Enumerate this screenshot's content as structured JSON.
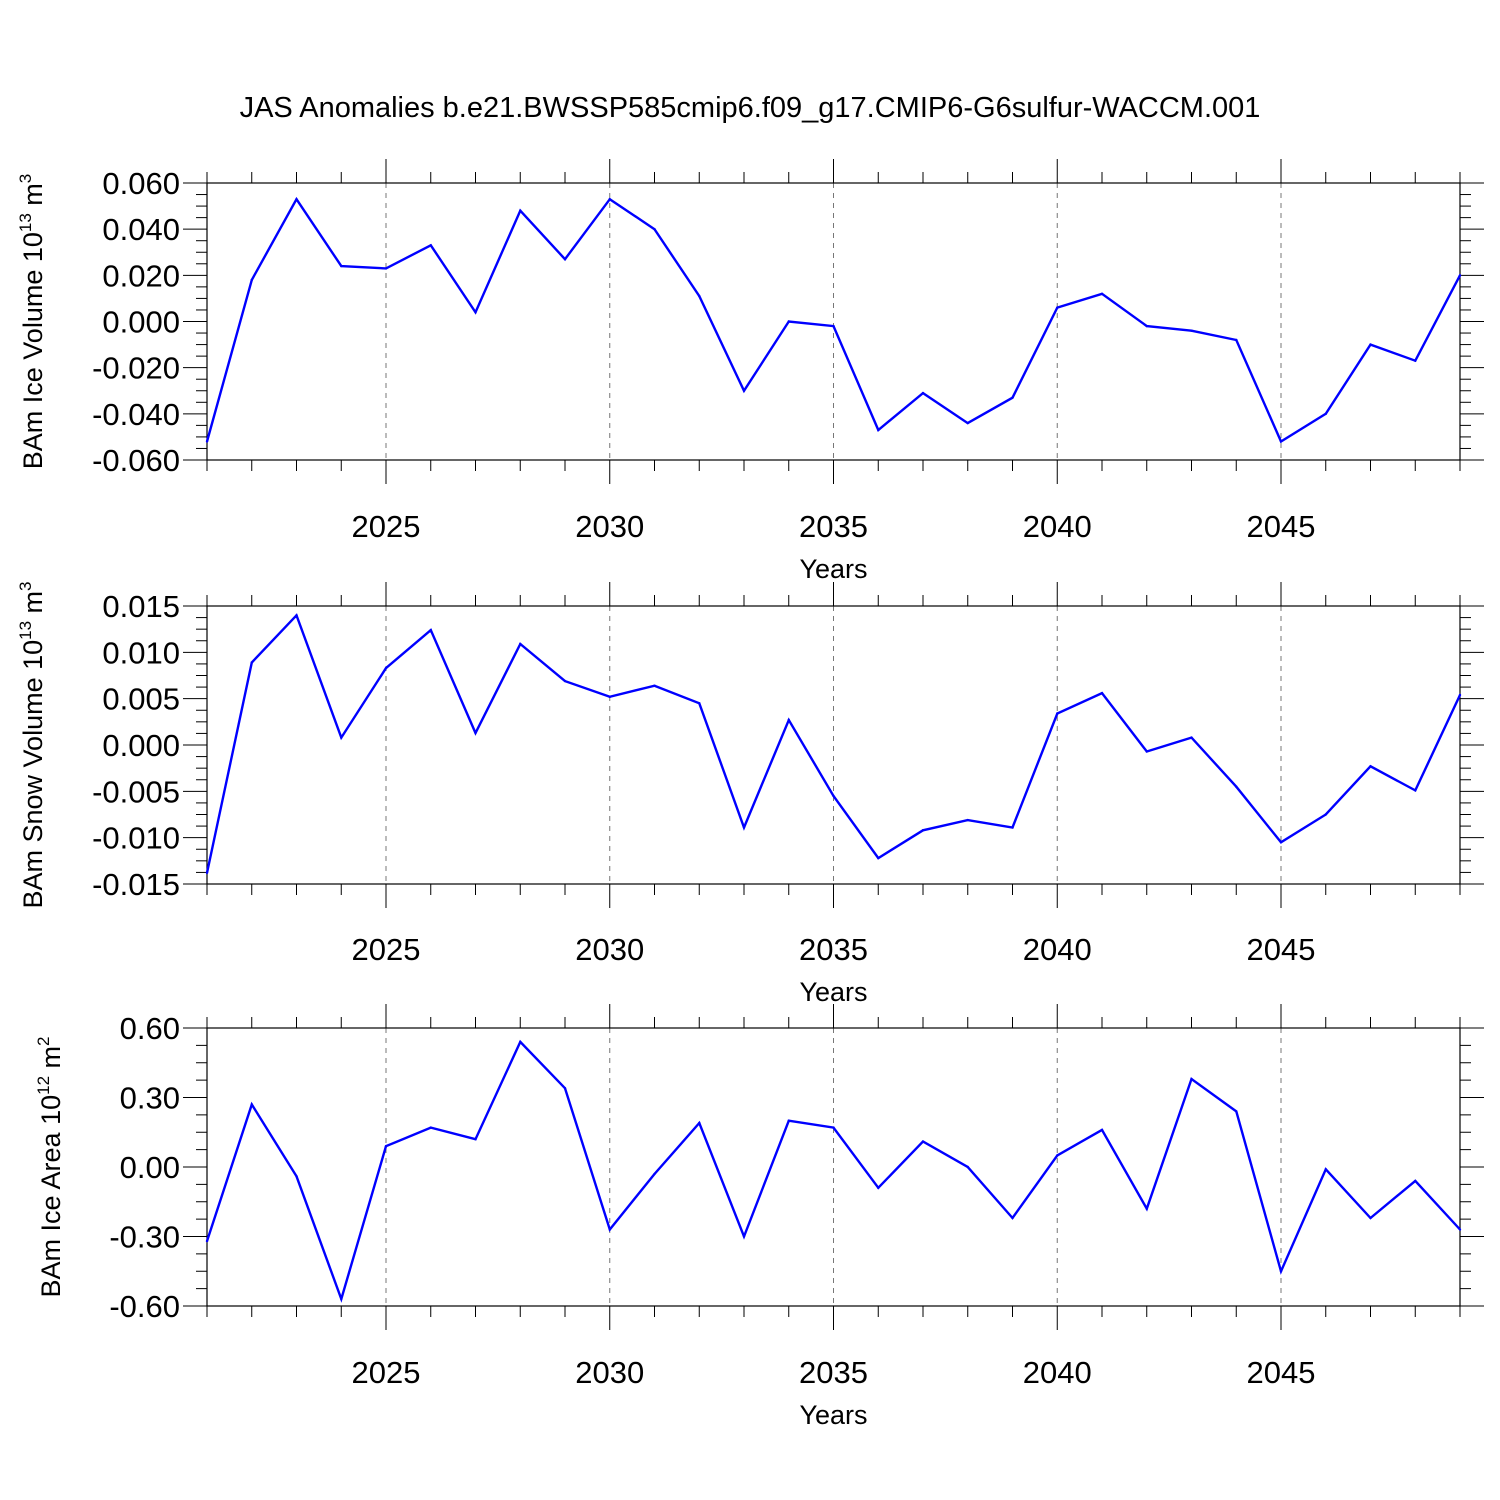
{
  "title": "JAS Anomalies b.e21.BWSSP585cmip6.f09_g17.CMIP6-G6sulfur-WACCM.001",
  "colors": {
    "line": "#0000ff",
    "axis": "#000000",
    "grid": "#777777"
  },
  "chart_data": [
    {
      "type": "line",
      "ylabel": "BAm Ice Volume 10^13 m^3",
      "ylabel_parts": {
        "text": "BAm Ice Volume 10",
        "exp1": "13",
        "unit": " m",
        "exp2": "3"
      },
      "xlabel": "Years",
      "xlim": [
        2021,
        2049
      ],
      "ylim": [
        -0.06,
        0.06
      ],
      "yticks": [
        -0.06,
        -0.04,
        -0.02,
        0.0,
        0.02,
        0.04,
        0.06
      ],
      "ytick_labels": [
        "-0.060",
        "-0.040",
        "-0.020",
        "0.000",
        "0.020",
        "0.040",
        "0.060"
      ],
      "xticks": [
        2025,
        2030,
        2035,
        2040,
        2045
      ],
      "xtick_labels": [
        "2025",
        "2030",
        "2035",
        "2040",
        "2045"
      ],
      "grid": "vertical-dashed-at-major-x",
      "x": [
        2021,
        2022,
        2023,
        2024,
        2025,
        2026,
        2027,
        2028,
        2029,
        2030,
        2031,
        2032,
        2033,
        2034,
        2035,
        2036,
        2037,
        2038,
        2039,
        2040,
        2041,
        2042,
        2043,
        2044,
        2045,
        2046,
        2047,
        2048,
        2049
      ],
      "values": [
        -0.052,
        0.018,
        0.053,
        0.024,
        0.023,
        0.033,
        0.004,
        0.048,
        0.027,
        0.053,
        0.04,
        0.011,
        -0.03,
        0.0,
        -0.002,
        -0.047,
        -0.031,
        -0.044,
        -0.033,
        0.006,
        0.012,
        -0.002,
        -0.004,
        -0.008,
        -0.052,
        -0.04,
        -0.01,
        -0.017,
        0.02
      ]
    },
    {
      "type": "line",
      "ylabel": "BAm Snow Volume 10^13 m^3",
      "ylabel_parts": {
        "text": "BAm Snow Volume 10",
        "exp1": "13",
        "unit": " m",
        "exp2": "3"
      },
      "xlabel": "Years",
      "xlim": [
        2021,
        2049
      ],
      "ylim": [
        -0.015,
        0.015
      ],
      "yticks": [
        -0.015,
        -0.01,
        -0.005,
        0.0,
        0.005,
        0.01,
        0.015
      ],
      "ytick_labels": [
        "-0.015",
        "-0.010",
        "-0.005",
        "0.000",
        "0.005",
        "0.010",
        "0.015"
      ],
      "xticks": [
        2025,
        2030,
        2035,
        2040,
        2045
      ],
      "xtick_labels": [
        "2025",
        "2030",
        "2035",
        "2040",
        "2045"
      ],
      "grid": "vertical-dashed-at-major-x",
      "x": [
        2021,
        2022,
        2023,
        2024,
        2025,
        2026,
        2027,
        2028,
        2029,
        2030,
        2031,
        2032,
        2033,
        2034,
        2035,
        2036,
        2037,
        2038,
        2039,
        2040,
        2041,
        2042,
        2043,
        2044,
        2045,
        2046,
        2047,
        2048,
        2049
      ],
      "values": [
        -0.0138,
        0.0089,
        0.014,
        0.0008,
        0.0083,
        0.0124,
        0.0013,
        0.0109,
        0.0069,
        0.0052,
        0.0064,
        0.0045,
        -0.0089,
        0.0027,
        -0.0055,
        -0.0122,
        -0.0092,
        -0.0081,
        -0.0089,
        0.0034,
        0.0056,
        -0.0007,
        0.0008,
        -0.0045,
        -0.0105,
        -0.0075,
        -0.0023,
        -0.0049,
        0.0054
      ]
    },
    {
      "type": "line",
      "ylabel": "BAm Ice Area 10^12 m^2",
      "ylabel_parts": {
        "text": "BAm Ice Area 10",
        "exp1": "12",
        "unit": " m",
        "exp2": "2"
      },
      "xlabel": "Years",
      "xlim": [
        2021,
        2049
      ],
      "ylim": [
        -0.6,
        0.6
      ],
      "yticks": [
        -0.6,
        -0.3,
        0.0,
        0.3,
        0.6
      ],
      "ytick_labels": [
        "-0.60",
        "-0.30",
        "0.00",
        "0.30",
        "0.60"
      ],
      "xticks": [
        2025,
        2030,
        2035,
        2040,
        2045
      ],
      "xtick_labels": [
        "2025",
        "2030",
        "2035",
        "2040",
        "2045"
      ],
      "grid": "vertical-dashed-at-major-x",
      "x": [
        2021,
        2022,
        2023,
        2024,
        2025,
        2026,
        2027,
        2028,
        2029,
        2030,
        2031,
        2032,
        2033,
        2034,
        2035,
        2036,
        2037,
        2038,
        2039,
        2040,
        2041,
        2042,
        2043,
        2044,
        2045,
        2046,
        2047,
        2048,
        2049
      ],
      "values": [
        -0.32,
        0.27,
        -0.04,
        -0.57,
        0.09,
        0.17,
        0.12,
        0.54,
        0.34,
        -0.27,
        -0.03,
        0.19,
        -0.3,
        0.2,
        0.17,
        -0.09,
        0.11,
        0.0,
        -0.22,
        0.05,
        0.16,
        -0.18,
        0.38,
        0.24,
        -0.45,
        -0.01,
        -0.22,
        -0.06,
        -0.27
      ]
    }
  ]
}
